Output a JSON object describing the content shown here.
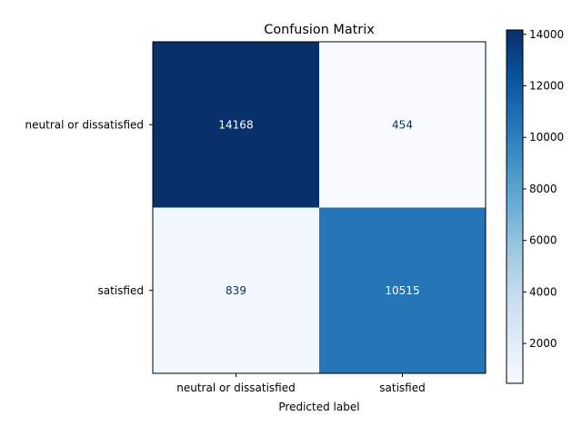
{
  "chart_data": {
    "type": "heatmap",
    "title": "Confusion Matrix",
    "xlabel": "Predicted label",
    "ylabel": "",
    "x_categories": [
      "neutral or dissatisfied",
      "satisfied"
    ],
    "y_categories": [
      "neutral or dissatisfied",
      "satisfied"
    ],
    "values": [
      [
        14168,
        454
      ],
      [
        839,
        10515
      ]
    ],
    "colormap": "Blues",
    "color_range": [
      454,
      14168
    ],
    "colorbar_ticks": [
      2000,
      4000,
      6000,
      8000,
      10000,
      12000,
      14000
    ],
    "text_colors": {
      "light": "#ffffff",
      "dark": "#08306b"
    },
    "grid": false
  }
}
